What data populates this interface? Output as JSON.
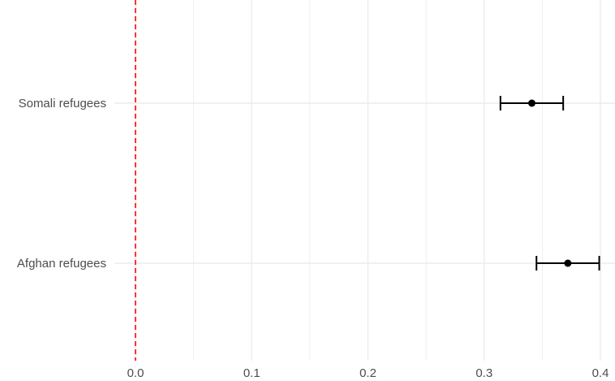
{
  "chart_data": {
    "type": "scatter",
    "subtype": "coefficient-plot-with-error-bars",
    "title": "",
    "xlabel": "",
    "ylabel": "",
    "xlim": [
      0.0,
      0.4
    ],
    "x_ticks": [
      "0.0",
      "0.1",
      "0.2",
      "0.3",
      "0.4"
    ],
    "grid": true,
    "reference_line": {
      "x": 0.0,
      "style": "dashed",
      "color": "#ff0000"
    },
    "categories": [
      "Somali refugees",
      "Afghan refugees"
    ],
    "series": [
      {
        "points": [
          {
            "category": "Somali refugees",
            "estimate": 0.341,
            "lower": 0.314,
            "upper": 0.368
          },
          {
            "category": "Afghan refugees",
            "estimate": 0.372,
            "lower": 0.345,
            "upper": 0.399
          }
        ]
      }
    ],
    "colors": {
      "points": "#000000",
      "grid": "#ebebeb",
      "reference": "#ff0000",
      "text": "#4d4d4d"
    }
  }
}
